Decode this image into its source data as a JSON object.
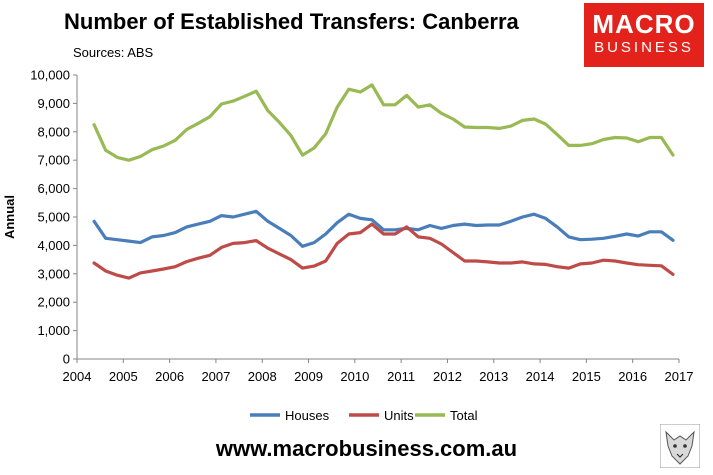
{
  "header": {
    "title": "Number of Established Transfers: Canberra",
    "source": "Sources: ABS"
  },
  "logo": {
    "line1": "MACRO",
    "line2": "BUSINESS"
  },
  "footer": {
    "url": "www.macrobusiness.com.au"
  },
  "chart_data": {
    "type": "line",
    "title": "Number of Established Transfers: Canberra",
    "ylabel": "Annual",
    "xlabel": "",
    "ylim": [
      0,
      10000
    ],
    "xlim": [
      2004,
      2017
    ],
    "yticks": [
      "0",
      "1,000",
      "2,000",
      "3,000",
      "4,000",
      "5,000",
      "6,000",
      "7,000",
      "8,000",
      "9,000",
      "10,000"
    ],
    "xticks": [
      "2004",
      "2005",
      "2006",
      "2007",
      "2008",
      "2009",
      "2010",
      "2011",
      "2012",
      "2013",
      "2014",
      "2015",
      "2016",
      "2017"
    ],
    "legend_position": "bottom",
    "grid": false,
    "x": [
      2004.37,
      2004.62,
      2004.87,
      2005.12,
      2005.37,
      2005.62,
      2005.87,
      2006.12,
      2006.37,
      2006.62,
      2006.87,
      2007.12,
      2007.37,
      2007.62,
      2007.87,
      2008.12,
      2008.37,
      2008.62,
      2008.87,
      2009.12,
      2009.37,
      2009.62,
      2009.87,
      2010.12,
      2010.37,
      2010.62,
      2010.87,
      2011.12,
      2011.37,
      2011.62,
      2011.87,
      2012.12,
      2012.37,
      2012.62,
      2012.87,
      2013.12,
      2013.37,
      2013.62,
      2013.87,
      2014.12,
      2014.37,
      2014.62,
      2014.87,
      2015.12,
      2015.37,
      2015.62,
      2015.87,
      2016.12,
      2016.37,
      2016.62,
      2016.87
    ],
    "series": [
      {
        "name": "Houses",
        "color": "#4a7ebb",
        "values": [
          4850,
          4250,
          4200,
          4150,
          4100,
          4300,
          4350,
          4450,
          4650,
          4750,
          4850,
          5050,
          5000,
          5100,
          5200,
          4850,
          4600,
          4350,
          3970,
          4100,
          4400,
          4800,
          5100,
          4950,
          4900,
          4550,
          4550,
          4600,
          4550,
          4700,
          4600,
          4700,
          4750,
          4700,
          4720,
          4720,
          4850,
          5000,
          5100,
          4950,
          4650,
          4300,
          4200,
          4220,
          4250,
          4320,
          4400,
          4330,
          4480,
          4480,
          4180
        ]
      },
      {
        "name": "Units",
        "color": "#be4b48",
        "values": [
          3380,
          3100,
          2950,
          2850,
          3030,
          3100,
          3170,
          3250,
          3430,
          3550,
          3650,
          3930,
          4070,
          4100,
          4170,
          3900,
          3700,
          3500,
          3200,
          3270,
          3450,
          4070,
          4400,
          4450,
          4750,
          4400,
          4400,
          4650,
          4300,
          4250,
          4050,
          3750,
          3450,
          3450,
          3420,
          3380,
          3380,
          3420,
          3350,
          3330,
          3250,
          3200,
          3350,
          3380,
          3480,
          3450,
          3380,
          3320,
          3300,
          3280,
          2980
        ]
      },
      {
        "name": "Total",
        "color": "#98b954",
        "values": [
          8250,
          7350,
          7100,
          7000,
          7130,
          7370,
          7500,
          7700,
          8080,
          8300,
          8530,
          8980,
          9080,
          9250,
          9430,
          8750,
          8330,
          7870,
          7180,
          7430,
          7930,
          8870,
          9500,
          9400,
          9650,
          8950,
          8950,
          9280,
          8870,
          8950,
          8650,
          8450,
          8170,
          8150,
          8150,
          8120,
          8200,
          8400,
          8450,
          8270,
          7900,
          7520,
          7520,
          7580,
          7730,
          7800,
          7780,
          7650,
          7800,
          7800,
          7180
        ]
      }
    ]
  }
}
